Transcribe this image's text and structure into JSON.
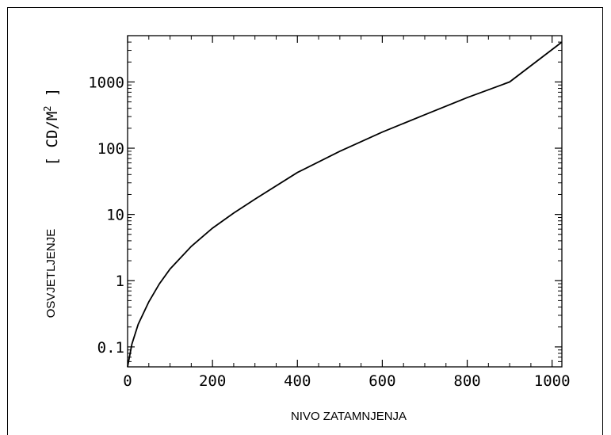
{
  "chart_data": {
    "type": "line",
    "xlabel": "NIVO ZATAMNJENJA",
    "ylabel": "OSVJETLJENJE",
    "yunit_open": "[ CD/M",
    "yunit_sup": "2",
    "yunit_close": " ]",
    "xscale": "linear",
    "yscale": "log",
    "xlim": [
      0,
      1023
    ],
    "ylim": [
      0.05,
      5000
    ],
    "x_ticks": [
      0,
      200,
      400,
      600,
      800,
      1000
    ],
    "x_tick_labels": [
      "0",
      "200",
      "400",
      "600",
      "800",
      "1000"
    ],
    "y_ticks": [
      0.1,
      1,
      10,
      100,
      1000
    ],
    "y_tick_labels": [
      "0.1",
      "1",
      "10",
      "100",
      "1000"
    ],
    "grid": false,
    "series": [
      {
        "x": [
          0,
          10,
          25,
          50,
          75,
          100,
          150,
          200,
          250,
          300,
          400,
          500,
          600,
          700,
          800,
          900,
          1023
        ],
        "y": [
          0.05,
          0.11,
          0.22,
          0.48,
          0.9,
          1.5,
          3.3,
          6.2,
          10.5,
          17,
          43,
          90,
          175,
          320,
          580,
          1000,
          4000
        ]
      }
    ]
  }
}
